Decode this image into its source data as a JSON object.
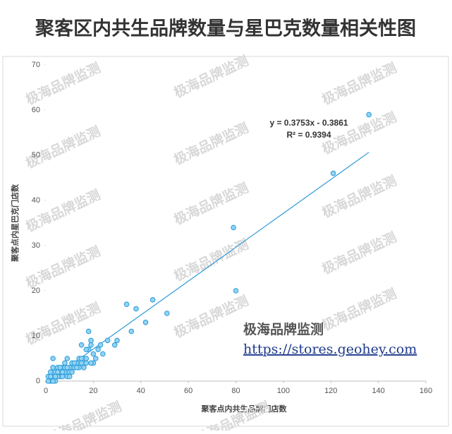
{
  "chart_data": {
    "type": "scatter",
    "title": "聚客区内共生品牌数量与星巴克数量相关性图",
    "x_label": "聚客点内共生品牌门店数",
    "y_label": "聚客点内星巴克门店数",
    "x": [
      136,
      121,
      79,
      80,
      51,
      45,
      42,
      38,
      36,
      34,
      30,
      29,
      26,
      24,
      23,
      22,
      21,
      19,
      18,
      19,
      18,
      20,
      15,
      16,
      17,
      20,
      15,
      14,
      13,
      12,
      11,
      10,
      9,
      8,
      7,
      6,
      5,
      4,
      3,
      3,
      2,
      2,
      1,
      1,
      4,
      6,
      8,
      9,
      5,
      7,
      3,
      10,
      12,
      14,
      16,
      17,
      19,
      13,
      11,
      2,
      4,
      6,
      8,
      3,
      5,
      10,
      7,
      9,
      15,
      17
    ],
    "values": [
      59,
      46,
      34,
      20,
      15,
      18,
      13,
      16,
      11,
      17,
      9,
      8,
      9,
      6,
      8,
      7,
      5,
      9,
      11,
      8,
      7,
      6,
      8,
      5,
      4,
      4,
      4,
      3,
      4,
      3,
      4,
      2,
      5,
      4,
      3,
      2,
      3,
      2,
      5,
      1,
      2,
      0,
      1,
      0,
      0,
      1,
      2,
      1,
      1,
      1,
      3,
      3,
      4,
      5,
      3,
      7,
      4,
      3,
      2,
      1,
      1,
      3,
      3,
      0,
      2,
      1,
      2,
      3,
      5,
      5
    ],
    "color": "#8fd3f5",
    "edge_color": "#2e9bd6",
    "xlim": [
      0,
      160
    ],
    "xticks": [
      0,
      20,
      40,
      60,
      80,
      100,
      120,
      140,
      160
    ],
    "ylim": [
      0,
      70
    ],
    "yticks": [
      0,
      10,
      20,
      30,
      40,
      50,
      60,
      70
    ],
    "trendline": {
      "slope": 0.3753,
      "intercept": -0.3861,
      "equation": "y = 0.3753x - 0.3861",
      "r2": "R² = 0.9394",
      "color": "#2e9bd6"
    },
    "watermark": "极海品牌监测",
    "source_name": "极海品牌监测",
    "source_url": "https://stores.geohey.com"
  }
}
